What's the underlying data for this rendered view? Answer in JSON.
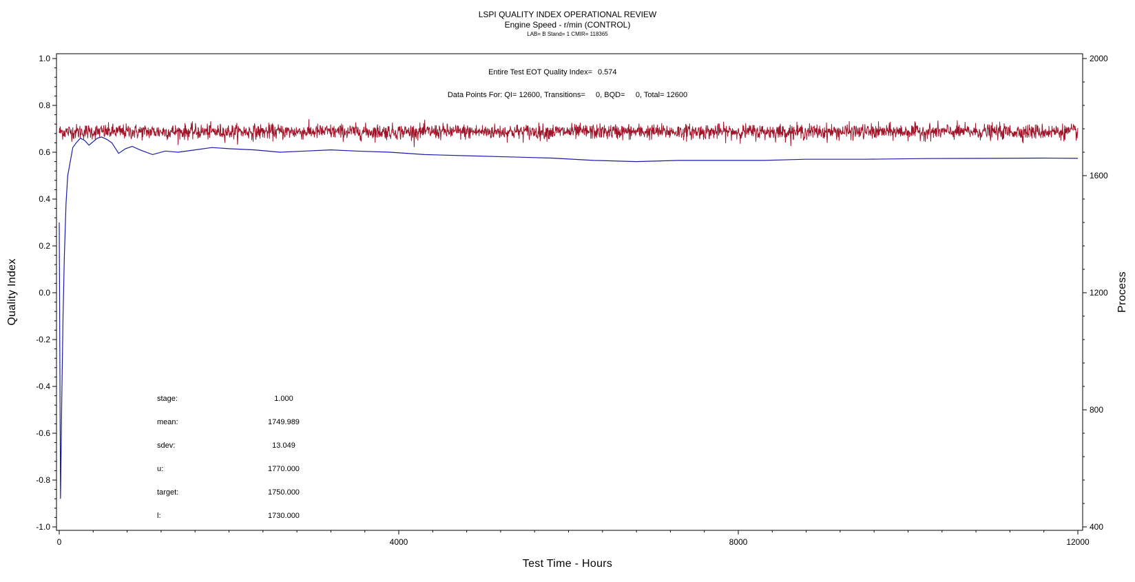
{
  "chart_data": {
    "type": "line",
    "title": "LSPI QUALITY INDEX OPERATIONAL REVIEW",
    "subtitle": "Engine Speed - r/min (CONTROL)",
    "subtitle2": "LAB= B Stand= 1 CMIR= 118365",
    "xlabel": "Test Time - Hours",
    "ylabel_left": "Quality Index",
    "ylabel_right": "Process",
    "xlim": [
      0,
      12000
    ],
    "ylim_left": [
      -1.0,
      1.0
    ],
    "ylim_right": [
      400,
      2000
    ],
    "x_ticks": [
      "0",
      "4000",
      "8000",
      "12000"
    ],
    "y_left_ticks": [
      "1.0",
      "0.8",
      "0.6",
      "0.4",
      "0.2",
      "0.0",
      "-0.2",
      "-0.4",
      "-0.6",
      "-0.8",
      "-1.0"
    ],
    "y_right_ticks": [
      "2000",
      "1600",
      "1200",
      "800",
      "400"
    ],
    "annotations": {
      "eot_label": "Entire Test EOT Quality Index=",
      "eot_value": "0.574",
      "datapoints": "Data Points For: QI= 12600, Transitions=     0, BQD=     0, Total= 12600"
    },
    "stats": [
      {
        "label": "stage:",
        "value": "1.000"
      },
      {
        "label": "mean:",
        "value": "1749.989"
      },
      {
        "label": "sdev:",
        "value": "13.049"
      },
      {
        "label": "u:",
        "value": "1770.000"
      },
      {
        "label": "target:",
        "value": "1750.000"
      },
      {
        "label": "l:",
        "value": "1730.000"
      }
    ],
    "series": [
      {
        "axis": "left",
        "color": "#1a1aa8",
        "x": [
          0,
          15,
          30,
          45,
          60,
          80,
          100,
          130,
          160,
          200,
          250,
          300,
          350,
          400,
          450,
          500,
          560,
          620,
          700,
          780,
          860,
          950,
          1100,
          1250,
          1400,
          1600,
          1800,
          2000,
          2300,
          2600,
          2900,
          3200,
          3500,
          3900,
          4300,
          4800,
          5300,
          5800,
          6300,
          6800,
          7300,
          7800,
          8300,
          8800,
          9500,
          10200,
          11000,
          11600,
          12000
        ],
        "y": [
          0.3,
          -0.88,
          -0.45,
          -0.1,
          0.15,
          0.38,
          0.5,
          0.56,
          0.62,
          0.64,
          0.66,
          0.65,
          0.63,
          0.645,
          0.66,
          0.665,
          0.655,
          0.64,
          0.595,
          0.615,
          0.625,
          0.61,
          0.59,
          0.605,
          0.6,
          0.61,
          0.62,
          0.615,
          0.61,
          0.6,
          0.605,
          0.61,
          0.605,
          0.6,
          0.59,
          0.585,
          0.58,
          0.575,
          0.565,
          0.56,
          0.565,
          0.565,
          0.565,
          0.57,
          0.57,
          0.573,
          0.574,
          0.575,
          0.574
        ]
      },
      {
        "axis": "right",
        "color": "#a0142a",
        "name_ref": "Process",
        "x_range": [
          0,
          12000
        ],
        "mean": 1749.989,
        "sdev": 13.049,
        "n": 12600
      }
    ],
    "grid": false,
    "legend": "none"
  }
}
